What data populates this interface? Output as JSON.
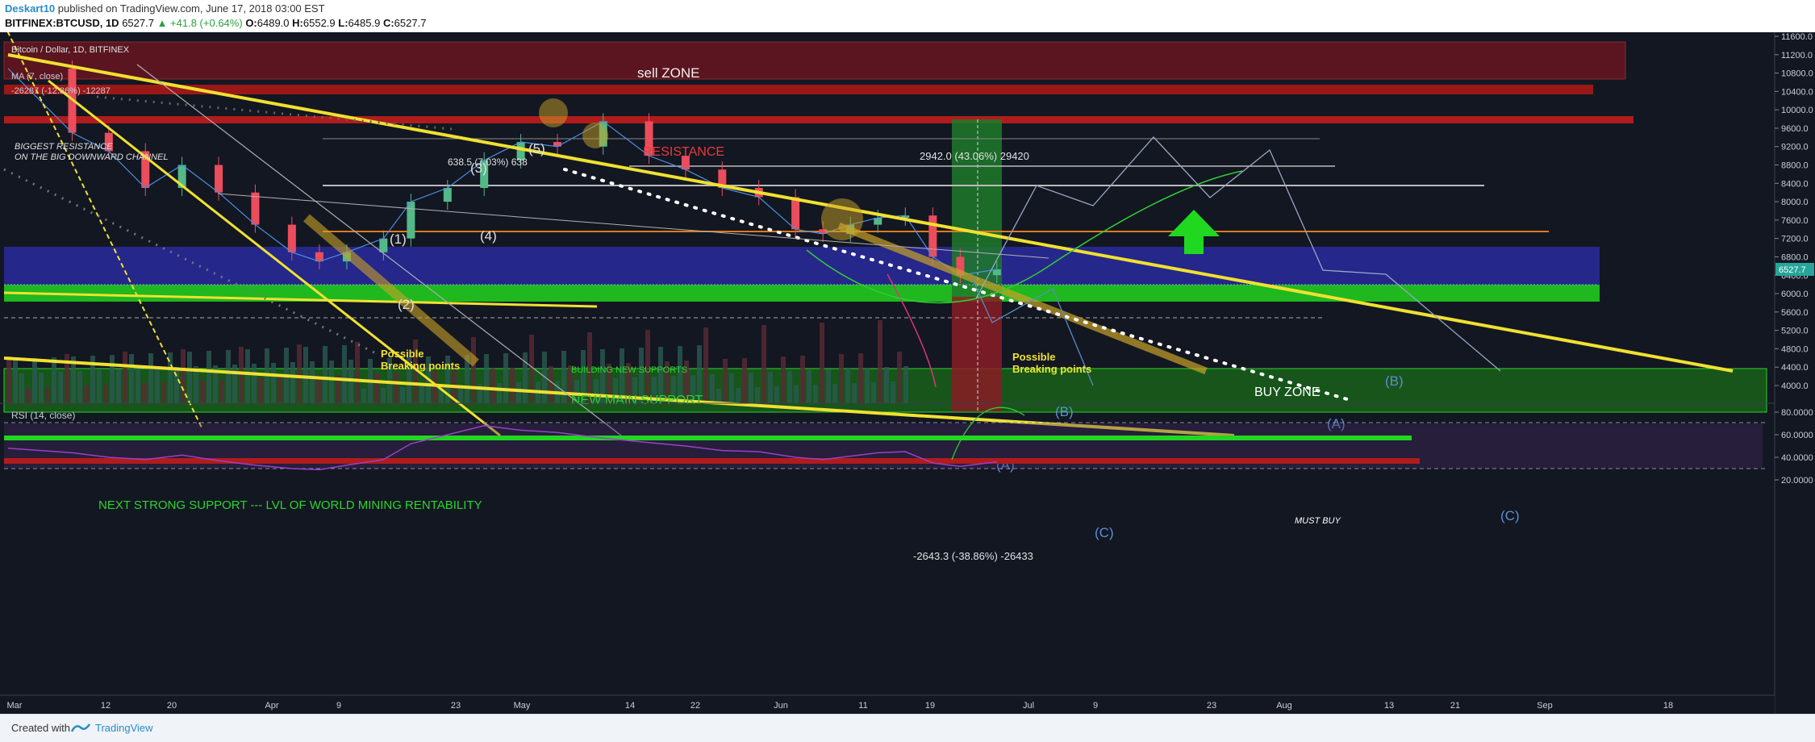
{
  "header": {
    "author": "Deskart10",
    "published": "published on TradingView.com, June 17, 2018 03:00 EST",
    "symbol": "BITFINEX:BTCUSD, 1D",
    "last": "6527.7",
    "change": "▲ +41.8 (+0.64%)",
    "o_label": "O:",
    "o": "6489.0",
    "h_label": "H:",
    "h": "6552.9",
    "l_label": "L:",
    "l": "6485.9",
    "c_label": "C:",
    "c": "6527.7"
  },
  "footer": {
    "created": "Created with",
    "brand": "TradingView"
  },
  "colors": {
    "background": "#131722",
    "bull": "#53b987",
    "bear": "#eb4d5c",
    "trendline": "#f0e130",
    "support_green": "#1fb81f",
    "buy_zone": "#2a2a9e",
    "resistance": "#b01c1c",
    "price_tag": "#26a69a"
  },
  "legend": {
    "line1": "Bitcoin / Dollar, 1D, BITFINEX",
    "line2": "MA (7, close)",
    "line3": "-26287 (-12.86%) -12287"
  },
  "chart_data": {
    "type": "line",
    "symbol": "BTCUSD",
    "price_axis": {
      "ylim": [
        3700,
        11800
      ],
      "ticks": [
        "11600.0",
        "11200.0",
        "10800.0",
        "10400.0",
        "10000.0",
        "9600.0",
        "9200.0",
        "8800.0",
        "8400.0",
        "8000.0",
        "7600.0",
        "7200.0",
        "6800.0",
        "6400.0",
        "6000.0",
        "5600.0",
        "5200.0",
        "4800.0",
        "4400.0",
        "4000.0"
      ],
      "current": "6527.7"
    },
    "time_axis": {
      "ticks": [
        "Mar",
        "12",
        "20",
        "Apr",
        "9",
        "23",
        "May",
        "14",
        "22",
        "Jun",
        "11",
        "19",
        "Jul",
        "9",
        "23",
        "Aug",
        "13",
        "21",
        "Sep",
        "18"
      ]
    },
    "series": [
      {
        "x": [
          "2018-03-01",
          "2018-03-08",
          "2018-03-12",
          "2018-03-16",
          "2018-03-20",
          "2018-03-24",
          "2018-03-28",
          "2018-04-01",
          "2018-04-04",
          "2018-04-07",
          "2018-04-11",
          "2018-04-14",
          "2018-04-18",
          "2018-04-22",
          "2018-04-26",
          "2018-04-30",
          "2018-05-05",
          "2018-05-10",
          "2018-05-14",
          "2018-05-18",
          "2018-05-22",
          "2018-05-26",
          "2018-05-29",
          "2018-06-01",
          "2018-06-04",
          "2018-06-07",
          "2018-06-10",
          "2018-06-13",
          "2018-06-17"
        ],
        "values": [
          10900,
          9500,
          9100,
          8300,
          8800,
          8200,
          7500,
          6900,
          6700,
          6900,
          7200,
          8000,
          8300,
          8900,
          9300,
          9200,
          9750,
          9000,
          8700,
          8300,
          8100,
          7400,
          7300,
          7500,
          7650,
          7700,
          6800,
          6400,
          6527.7
        ]
      }
    ],
    "rsi": {
      "label": "RSI (14, close)",
      "ylim": [
        15,
        90
      ],
      "ticks": [
        "80.0000",
        "60.0000",
        "40.0000",
        "20.0000"
      ],
      "bands": [
        70,
        30
      ],
      "values": [
        48,
        44,
        40,
        38,
        42,
        37,
        33,
        30,
        29,
        33,
        38,
        52,
        60,
        68,
        64,
        62,
        57,
        53,
        50,
        46,
        45,
        40,
        38,
        41,
        44,
        45,
        35,
        32,
        36
      ]
    },
    "annotations": {
      "sell_zone": "sell ZONE",
      "resistance": "RESISTANCE",
      "buy_zone": "BUY ZONE",
      "new_main_support": "NEW MAIN SUPPORT",
      "building_new_supports": "BUILDING NEW SUPPORTS",
      "next_strong_support": "NEXT STRONG SUPPORT --- LVL OF WORLD MINING RENTABILITY",
      "must_buy": "MUST BUY",
      "possible_breaking_points_1": "Possible\nBreaking points",
      "possible_breaking_points_2": "Possible\nBreaking points",
      "measure_up": "2942.0 (43.06%) 29420",
      "measure_down": "-2643.3 (-38.86%) -26433",
      "measure_top": "638.5 (7.03%) 638",
      "biggest_resistance": "BIGGEST RESISTANCE\nON THE BIG DOWNWARD CHANNEL",
      "wave_labels": [
        "(1)",
        "(2)",
        "(3)",
        "(4)",
        "(5)",
        "(A)",
        "(B)",
        "(C)",
        "(A)",
        "(B)",
        "(C)"
      ]
    }
  }
}
